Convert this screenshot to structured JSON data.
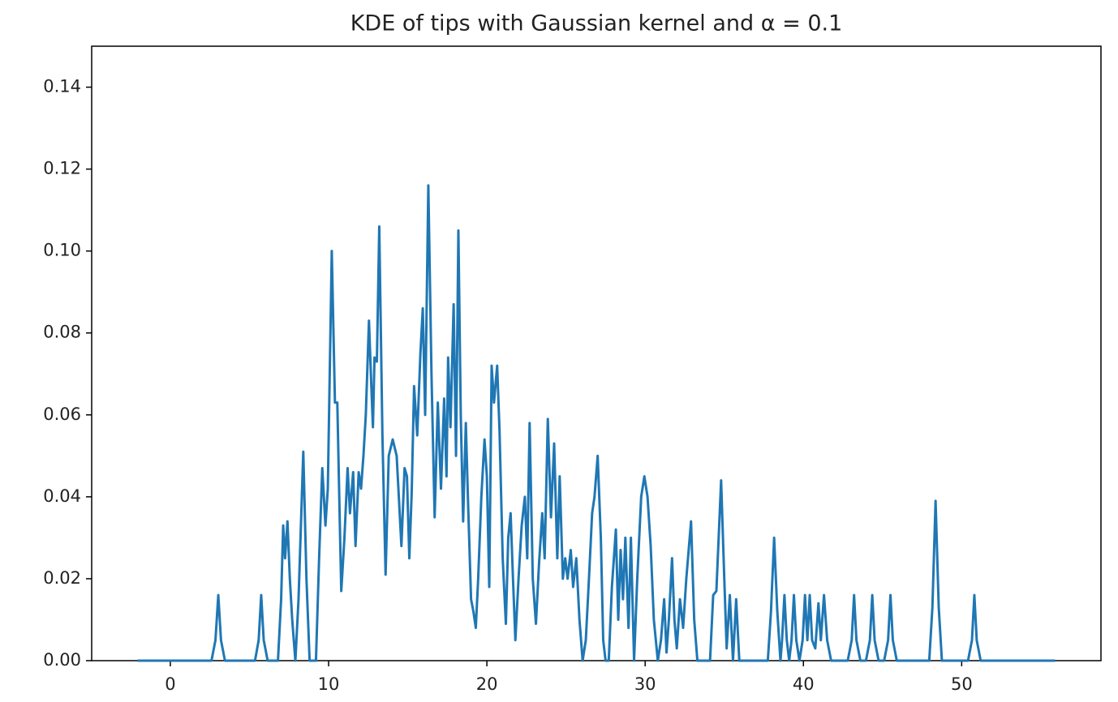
{
  "chart_data": {
    "type": "line",
    "title": "KDE of tips with Gaussian kernel and α = 0.1",
    "color": "#1f77b4",
    "xlim": [
      -4.97,
      58.8
    ],
    "ylim": [
      0,
      0.15
    ],
    "xticks": [
      0,
      10,
      20,
      30,
      40,
      50
    ],
    "yticks": [
      {
        "value": 0,
        "label": "0.00"
      },
      0.02,
      0.04,
      0.06,
      0.08,
      {
        "value": 0.1,
        "label": "0.10"
      },
      0.12,
      0.14
    ],
    "x": [
      -2.07,
      2.6,
      2.85,
      3.03,
      3.2,
      3.45,
      5.35,
      5.58,
      5.74,
      5.9,
      6.15,
      6.8,
      7.0,
      7.13,
      7.25,
      7.4,
      7.55,
      7.7,
      7.9,
      8.1,
      8.4,
      8.6,
      8.8,
      9.2,
      9.4,
      9.6,
      9.8,
      9.95,
      10.2,
      10.4,
      10.55,
      10.7,
      10.8,
      11.0,
      11.2,
      11.35,
      11.55,
      11.7,
      11.9,
      12.05,
      12.2,
      12.35,
      12.55,
      12.7,
      12.8,
      12.9,
      13.05,
      13.2,
      13.4,
      13.6,
      13.8,
      14.05,
      14.3,
      14.45,
      14.6,
      14.8,
      14.95,
      15.1,
      15.25,
      15.4,
      15.6,
      15.8,
      15.95,
      16.1,
      16.3,
      16.5,
      16.7,
      16.9,
      17.1,
      17.3,
      17.45,
      17.55,
      17.7,
      17.9,
      18.05,
      18.2,
      18.35,
      18.5,
      18.67,
      18.8,
      19.0,
      19.15,
      19.3,
      19.45,
      19.65,
      19.85,
      20.0,
      20.15,
      20.3,
      20.45,
      20.65,
      20.8,
      21.0,
      21.2,
      21.35,
      21.5,
      21.65,
      21.8,
      22.0,
      22.2,
      22.4,
      22.55,
      22.7,
      22.9,
      23.1,
      23.3,
      23.5,
      23.65,
      23.85,
      24.05,
      24.25,
      24.45,
      24.6,
      24.8,
      24.95,
      25.1,
      25.3,
      25.45,
      25.65,
      25.85,
      26.05,
      26.25,
      26.45,
      26.65,
      26.8,
      27.0,
      27.2,
      27.35,
      27.5,
      27.7,
      27.9,
      28.15,
      28.3,
      28.45,
      28.6,
      28.75,
      28.95,
      29.1,
      29.3,
      29.5,
      29.75,
      29.95,
      30.15,
      30.35,
      30.55,
      30.8,
      31.0,
      31.2,
      31.35,
      31.5,
      31.7,
      31.85,
      32.0,
      32.2,
      32.4,
      32.6,
      32.9,
      33.1,
      33.3,
      34.1,
      34.3,
      34.5,
      34.8,
      35.0,
      35.15,
      35.35,
      35.55,
      35.75,
      35.95,
      37.75,
      37.95,
      38.15,
      38.35,
      38.55,
      38.65,
      38.8,
      38.95,
      39.1,
      39.25,
      39.4,
      39.55,
      39.75,
      39.95,
      40.1,
      40.25,
      40.4,
      40.55,
      40.75,
      40.95,
      41.1,
      41.3,
      41.5,
      41.75,
      42.8,
      43.05,
      43.2,
      43.35,
      43.6,
      43.95,
      44.2,
      44.35,
      44.5,
      44.75,
      45.1,
      45.35,
      45.5,
      45.65,
      45.9,
      47.95,
      48.15,
      48.35,
      48.55,
      48.75,
      50.4,
      50.65,
      50.8,
      50.95,
      51.2,
      55.9
    ],
    "values": [
      0,
      0,
      0.005,
      0.016,
      0.005,
      0,
      0,
      0.005,
      0.016,
      0.005,
      0,
      0,
      0.015,
      0.033,
      0.025,
      0.034,
      0.02,
      0.01,
      0,
      0.015,
      0.051,
      0.02,
      0,
      0,
      0.025,
      0.047,
      0.033,
      0.042,
      0.1,
      0.063,
      0.063,
      0.035,
      0.017,
      0.03,
      0.047,
      0.036,
      0.046,
      0.028,
      0.046,
      0.042,
      0.05,
      0.06,
      0.083,
      0.067,
      0.057,
      0.074,
      0.073,
      0.106,
      0.055,
      0.021,
      0.05,
      0.054,
      0.05,
      0.039,
      0.028,
      0.047,
      0.045,
      0.025,
      0.041,
      0.067,
      0.055,
      0.075,
      0.086,
      0.06,
      0.116,
      0.07,
      0.035,
      0.063,
      0.042,
      0.064,
      0.045,
      0.074,
      0.057,
      0.087,
      0.05,
      0.105,
      0.06,
      0.034,
      0.058,
      0.04,
      0.015,
      0.012,
      0.008,
      0.02,
      0.04,
      0.054,
      0.045,
      0.018,
      0.072,
      0.063,
      0.072,
      0.056,
      0.025,
      0.009,
      0.03,
      0.036,
      0.02,
      0.005,
      0.02,
      0.033,
      0.04,
      0.025,
      0.058,
      0.02,
      0.009,
      0.024,
      0.036,
      0.025,
      0.059,
      0.035,
      0.053,
      0.025,
      0.045,
      0.02,
      0.025,
      0.02,
      0.027,
      0.018,
      0.025,
      0.01,
      0,
      0.005,
      0.02,
      0.036,
      0.04,
      0.05,
      0.03,
      0.005,
      0,
      0,
      0.018,
      0.032,
      0.01,
      0.027,
      0.015,
      0.03,
      0.008,
      0.03,
      0,
      0.02,
      0.04,
      0.045,
      0.04,
      0.028,
      0.01,
      0,
      0.005,
      0.015,
      0.002,
      0.01,
      0.025,
      0.01,
      0.003,
      0.015,
      0.008,
      0.02,
      0.034,
      0.01,
      0,
      0,
      0.016,
      0.017,
      0.044,
      0.02,
      0.003,
      0.016,
      0,
      0.015,
      0,
      0,
      0.012,
      0.03,
      0.012,
      0,
      0.005,
      0.016,
      0.005,
      0,
      0.005,
      0.016,
      0.005,
      0,
      0.005,
      0.016,
      0.005,
      0.016,
      0.005,
      0.003,
      0.014,
      0.005,
      0.016,
      0.005,
      0,
      0,
      0.005,
      0.016,
      0.005,
      0,
      0,
      0.005,
      0.016,
      0.005,
      0,
      0,
      0.005,
      0.016,
      0.005,
      0,
      0,
      0.013,
      0.039,
      0.013,
      0,
      0,
      0.005,
      0.016,
      0.005,
      0,
      0
    ]
  }
}
